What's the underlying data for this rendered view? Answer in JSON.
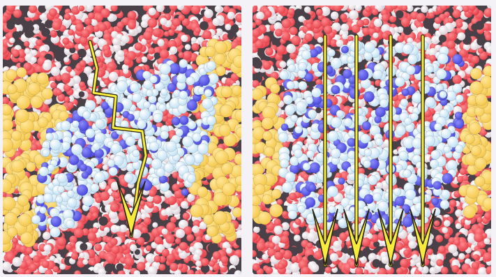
{
  "figure": {
    "panels": [
      {
        "id": "left",
        "depicts": "molecular-simulation-snapshot",
        "arrow_style": "single-zigzag",
        "arrow_count": 1
      },
      {
        "id": "right",
        "depicts": "molecular-simulation-snapshot",
        "arrow_style": "straight-parallel",
        "arrow_count": 4
      }
    ],
    "colors": {
      "water_oxygen": "#e5414a",
      "water_hydrogen": "#f7f1f3",
      "water_dark": "#4a4048",
      "protein_light": "#bfe0f4",
      "protein_blue": "#4a48d8",
      "lipid": "#f5c84c",
      "arrow_fill": "#f7ec3c",
      "arrow_outline": "#2a2416"
    }
  }
}
